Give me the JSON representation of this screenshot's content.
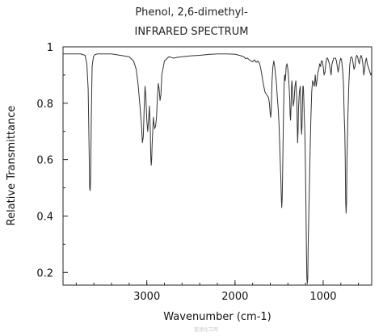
{
  "chart_data": {
    "type": "line",
    "title": "Phenol, 2,6-dimethyl-",
    "subtitle": "INFRARED SPECTRUM",
    "xlabel": "Wavenumber (cm-1)",
    "ylabel": "Relative Transmittance",
    "xlim": [
      3950,
      450
    ],
    "ylim": [
      0.155,
      1.0
    ],
    "x_ticks": [
      3000,
      2000,
      1000
    ],
    "y_ticks": [
      0.2,
      0.4,
      0.6,
      0.8,
      1
    ],
    "grid": false,
    "series": [
      {
        "x": [
          3950,
          3850,
          3750,
          3700,
          3680,
          3665,
          3655,
          3648,
          3642,
          3636,
          3628,
          3620,
          3605,
          3590,
          3560,
          3500,
          3400,
          3300,
          3200,
          3150,
          3120,
          3100,
          3080,
          3060,
          3050,
          3040,
          3030,
          3020,
          3010,
          3000,
          2990,
          2980,
          2970,
          2960,
          2955,
          2950,
          2945,
          2940,
          2930,
          2925,
          2920,
          2910,
          2900,
          2890,
          2880,
          2870,
          2860,
          2850,
          2840,
          2830,
          2800,
          2750,
          2700,
          2650,
          2600,
          2500,
          2400,
          2300,
          2200,
          2100,
          2000,
          1950,
          1900,
          1880,
          1860,
          1840,
          1820,
          1800,
          1780,
          1760,
          1740,
          1720,
          1700,
          1680,
          1660,
          1640,
          1620,
          1610,
          1600,
          1595,
          1590,
          1585,
          1580,
          1570,
          1560,
          1550,
          1540,
          1530,
          1520,
          1510,
          1500,
          1490,
          1480,
          1475,
          1470,
          1465,
          1460,
          1455,
          1450,
          1445,
          1440,
          1435,
          1430,
          1425,
          1420,
          1410,
          1400,
          1390,
          1380,
          1375,
          1370,
          1365,
          1360,
          1355,
          1350,
          1345,
          1340,
          1330,
          1320,
          1310,
          1300,
          1295,
          1290,
          1285,
          1280,
          1270,
          1260,
          1255,
          1250,
          1245,
          1240,
          1235,
          1230,
          1225,
          1220,
          1215,
          1210,
          1205,
          1200,
          1195,
          1190,
          1185,
          1180,
          1175,
          1170,
          1160,
          1150,
          1140,
          1130,
          1120,
          1110,
          1100,
          1095,
          1090,
          1085,
          1080,
          1070,
          1060,
          1050,
          1040,
          1030,
          1020,
          1010,
          1000,
          990,
          980,
          970,
          960,
          950,
          940,
          930,
          920,
          910,
          900,
          880,
          860,
          850,
          840,
          830,
          820,
          810,
          800,
          790,
          780,
          770,
          765,
          760,
          755,
          750,
          745,
          740,
          735,
          730,
          720,
          710,
          700,
          690,
          680,
          670,
          660,
          650,
          640,
          630,
          620,
          610,
          600,
          590,
          580,
          570,
          560,
          550,
          540,
          530,
          520,
          510,
          500,
          480,
          460,
          450
        ],
        "y": [
          0.975,
          0.975,
          0.975,
          0.97,
          0.94,
          0.85,
          0.65,
          0.5,
          0.49,
          0.55,
          0.78,
          0.93,
          0.965,
          0.972,
          0.975,
          0.975,
          0.975,
          0.97,
          0.965,
          0.95,
          0.92,
          0.87,
          0.8,
          0.72,
          0.66,
          0.68,
          0.78,
          0.86,
          0.82,
          0.74,
          0.7,
          0.74,
          0.79,
          0.7,
          0.61,
          0.58,
          0.6,
          0.65,
          0.72,
          0.75,
          0.73,
          0.71,
          0.72,
          0.75,
          0.82,
          0.87,
          0.85,
          0.81,
          0.83,
          0.9,
          0.95,
          0.965,
          0.96,
          0.963,
          0.965,
          0.968,
          0.97,
          0.973,
          0.975,
          0.975,
          0.974,
          0.97,
          0.965,
          0.958,
          0.96,
          0.955,
          0.95,
          0.947,
          0.954,
          0.945,
          0.95,
          0.94,
          0.91,
          0.87,
          0.84,
          0.83,
          0.82,
          0.8,
          0.76,
          0.75,
          0.77,
          0.82,
          0.88,
          0.93,
          0.95,
          0.93,
          0.9,
          0.87,
          0.82,
          0.78,
          0.72,
          0.62,
          0.53,
          0.47,
          0.43,
          0.46,
          0.55,
          0.66,
          0.76,
          0.84,
          0.89,
          0.9,
          0.88,
          0.9,
          0.93,
          0.94,
          0.92,
          0.88,
          0.82,
          0.76,
          0.74,
          0.78,
          0.85,
          0.88,
          0.86,
          0.82,
          0.79,
          0.81,
          0.86,
          0.88,
          0.82,
          0.74,
          0.66,
          0.7,
          0.78,
          0.84,
          0.86,
          0.8,
          0.72,
          0.69,
          0.72,
          0.8,
          0.86,
          0.86,
          0.82,
          0.76,
          0.72,
          0.65,
          0.55,
          0.42,
          0.28,
          0.18,
          0.16,
          0.18,
          0.3,
          0.45,
          0.6,
          0.74,
          0.84,
          0.88,
          0.87,
          0.86,
          0.88,
          0.9,
          0.88,
          0.86,
          0.88,
          0.91,
          0.92,
          0.94,
          0.93,
          0.95,
          0.95,
          0.93,
          0.9,
          0.91,
          0.94,
          0.96,
          0.96,
          0.95,
          0.94,
          0.92,
          0.9,
          0.94,
          0.96,
          0.96,
          0.95,
          0.93,
          0.91,
          0.93,
          0.95,
          0.96,
          0.95,
          0.92,
          0.87,
          0.8,
          0.74,
          0.7,
          0.6,
          0.45,
          0.41,
          0.45,
          0.6,
          0.75,
          0.86,
          0.93,
          0.96,
          0.965,
          0.96,
          0.94,
          0.92,
          0.93,
          0.96,
          0.97,
          0.965,
          0.95,
          0.94,
          0.96,
          0.97,
          0.96,
          0.94,
          0.9,
          0.92,
          0.95,
          0.96,
          0.94,
          0.92,
          0.9,
          0.91
        ]
      }
    ]
  },
  "watermark": "盖德化工网"
}
